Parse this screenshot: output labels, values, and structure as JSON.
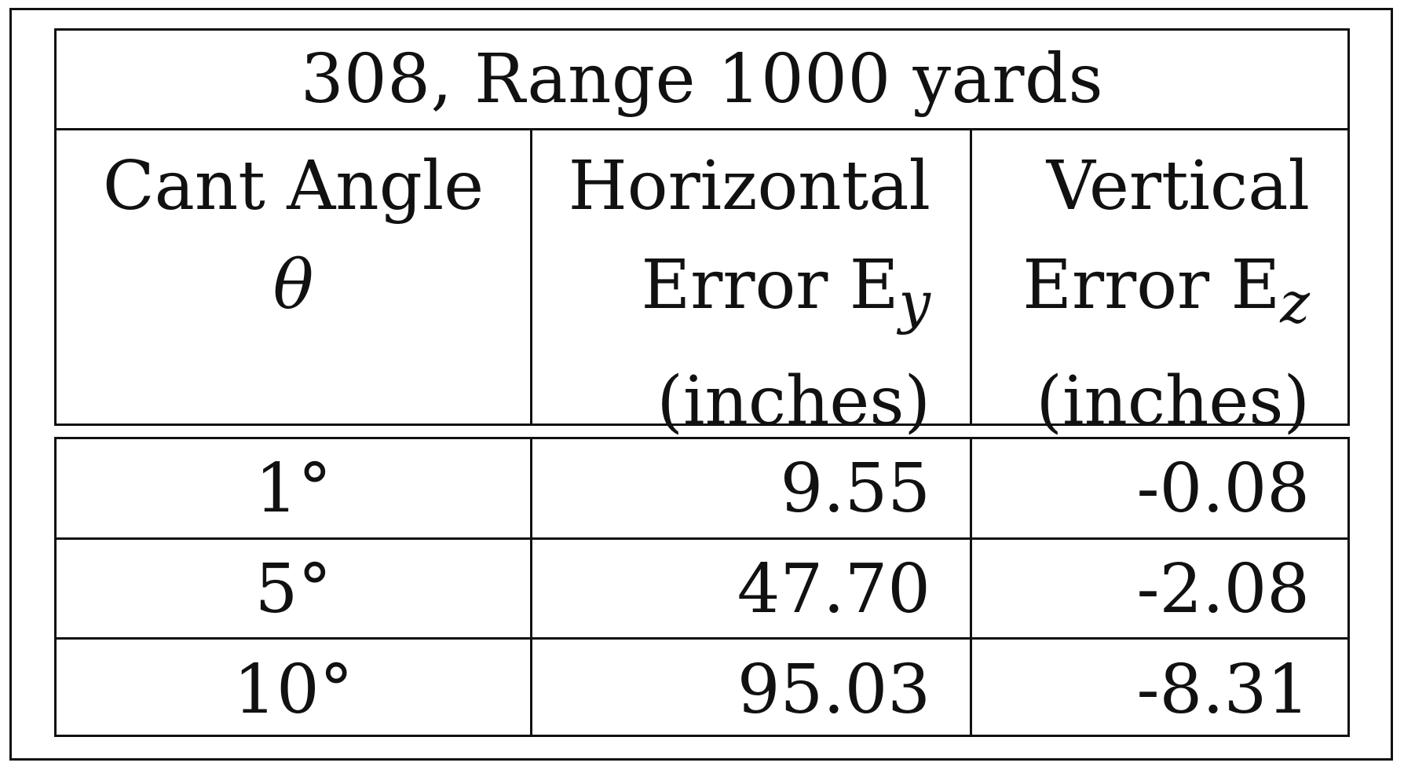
{
  "table": {
    "title": "308, Range 1000 yards",
    "headers": [
      {
        "lines": [
          "Cant Angle",
          "θ",
          ""
        ]
      },
      {
        "lines": [
          "Horizontal",
          "Error E",
          "(inches)"
        ],
        "subscript": "y"
      },
      {
        "lines": [
          "Vertical",
          "Error E",
          "(inches)"
        ],
        "subscript": "z"
      }
    ],
    "rows": [
      [
        "1°",
        "9.55",
        "-0.08"
      ],
      [
        "5°",
        "47.70",
        "-2.08"
      ],
      [
        "10°",
        "95.03",
        "-8.31"
      ]
    ]
  }
}
